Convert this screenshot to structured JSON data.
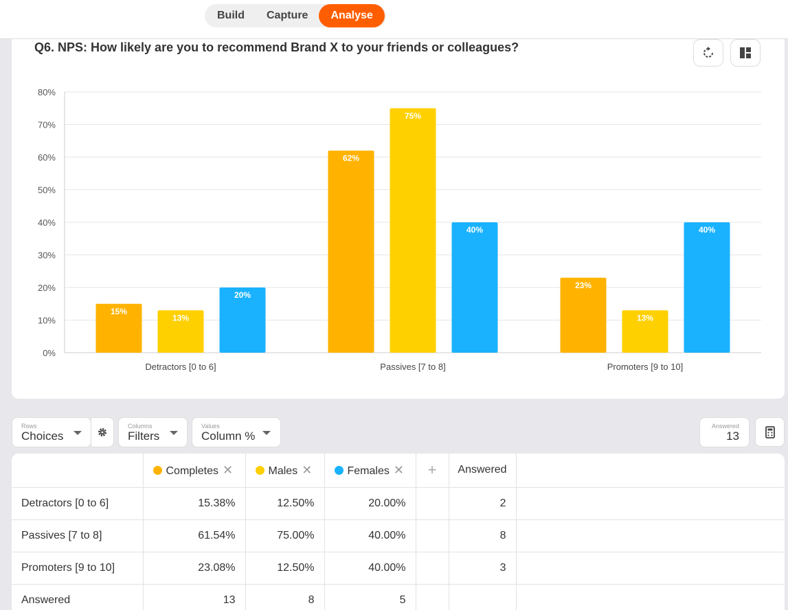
{
  "nav": {
    "tabs": [
      "Build",
      "Capture",
      "Analyse"
    ],
    "active_index": 2
  },
  "question": {
    "title": "Q6. NPS: How likely are you to recommend Brand X to your friends or colleagues?"
  },
  "icons": {
    "refresh": "refresh-icon",
    "layout": "layout-icon",
    "settings": "gear-icon",
    "calculator": "calculator-icon",
    "remove": "close-icon",
    "add": "plus-icon",
    "caret": "chevron-down-icon"
  },
  "chart_data": {
    "type": "bar",
    "categories": [
      "Detractors [0 to 6]",
      "Passives [7 to 8]",
      "Promoters [9 to 10]"
    ],
    "series": [
      {
        "name": "Completes",
        "color": "#ffb300",
        "values": [
          15,
          62,
          23
        ]
      },
      {
        "name": "Males",
        "color": "#ffd000",
        "values": [
          13,
          75,
          13
        ]
      },
      {
        "name": "Females",
        "color": "#1ab2ff",
        "values": [
          20,
          40,
          40
        ]
      }
    ],
    "y_ticks": [
      "0%",
      "10%",
      "20%",
      "30%",
      "40%",
      "50%",
      "60%",
      "70%",
      "80%"
    ],
    "ylim": [
      0,
      80
    ],
    "value_suffix": "%",
    "grid": true
  },
  "controls": {
    "rows": {
      "label": "Rows",
      "value": "Choices"
    },
    "columns": {
      "label": "Columns",
      "value": "Filters"
    },
    "values": {
      "label": "Values",
      "value": "Column %"
    },
    "answered": {
      "label": "Answered",
      "value": "13"
    }
  },
  "table": {
    "headers": [
      "Completes",
      "Males",
      "Females",
      "Answered"
    ],
    "header_colors": [
      "#ffb300",
      "#ffd000",
      "#1ab2ff"
    ],
    "add_label": "+",
    "remove_label": "✕",
    "rows": [
      {
        "label": "Detractors [0 to 6]",
        "cells": [
          "15.38%",
          "12.50%",
          "20.00%"
        ],
        "answered": "2"
      },
      {
        "label": "Passives [7 to 8]",
        "cells": [
          "61.54%",
          "75.00%",
          "40.00%"
        ],
        "answered": "8"
      },
      {
        "label": "Promoters [9 to 10]",
        "cells": [
          "23.08%",
          "12.50%",
          "40.00%"
        ],
        "answered": "3"
      },
      {
        "label": "Answered",
        "cells": [
          "13",
          "8",
          "5"
        ],
        "answered": ""
      }
    ]
  }
}
